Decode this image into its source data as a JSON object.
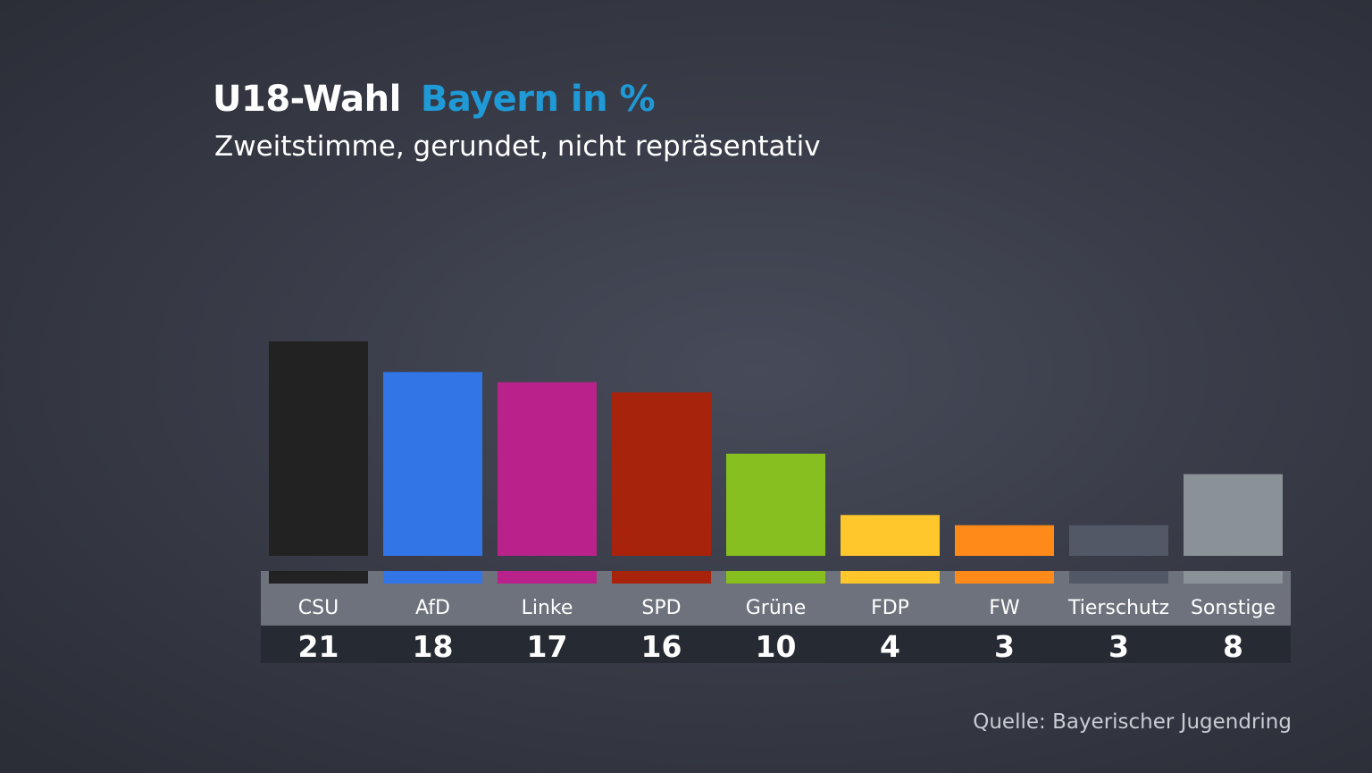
{
  "header": {
    "title": "U18-Wahl",
    "title_accent": "Bayern in %",
    "subtitle": "Zweitstimme, gerundet, nicht repräsentativ"
  },
  "source": "Quelle: Bayerischer Jugendring",
  "colors": {
    "accent": "#1f9ad6",
    "label_band": "#6d727c",
    "value_band": "#262a33"
  },
  "chart_data": {
    "type": "bar",
    "title": "U18-Wahl Bayern in %",
    "subtitle": "Zweitstimme, gerundet, nicht repräsentativ",
    "categories": [
      "CSU",
      "AfD",
      "Linke",
      "SPD",
      "Grüne",
      "FDP",
      "FW",
      "Tierschutz",
      "Sonstige"
    ],
    "values": [
      21,
      18,
      17,
      16,
      10,
      4,
      3,
      3,
      8
    ],
    "value_labels": [
      "21",
      "18",
      "17",
      "16",
      "10",
      "4",
      "3",
      "3",
      "8"
    ],
    "colors": [
      "#222222",
      "#3275e6",
      "#b9228a",
      "#a8230c",
      "#86bf1f",
      "#ffc72c",
      "#ff8a1a",
      "#535867",
      "#8a9297"
    ],
    "ylim": [
      0,
      21
    ],
    "grid": false,
    "legend": "none",
    "xlabel": "",
    "ylabel": ""
  }
}
